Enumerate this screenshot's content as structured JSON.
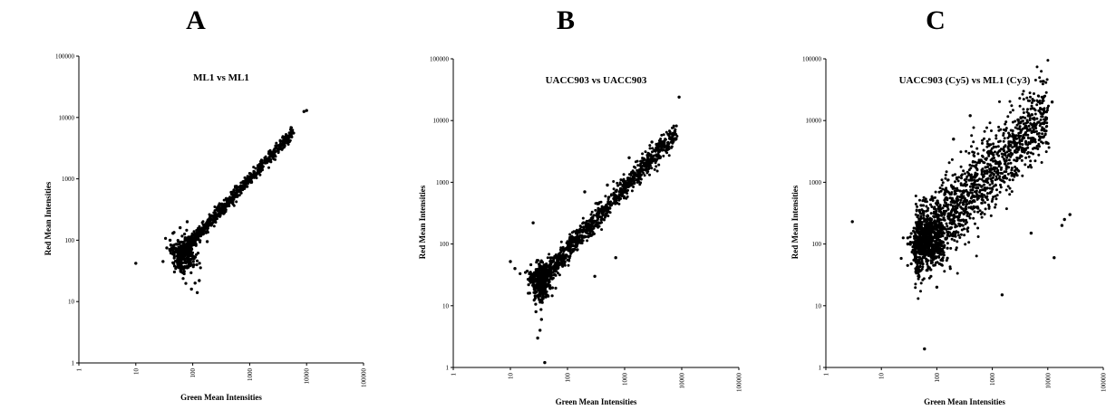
{
  "chart_data": [
    {
      "type": "scatter",
      "panel_label": "A",
      "title": "ML1 vs ML1",
      "xlabel": "Green Mean Intensities",
      "ylabel": "Red Mean Intensities",
      "xscale": "log",
      "yscale": "log",
      "xlim": [
        1,
        100000
      ],
      "ylim": [
        1,
        100000
      ],
      "x_ticks": [
        "1",
        "10",
        "100",
        "1000",
        "10000",
        "100000"
      ],
      "y_ticks": [
        "1",
        "10",
        "100",
        "1000",
        "10000",
        "100000"
      ],
      "grid": false,
      "description_of_cloud": {
        "body": {
          "x_range": [
            60,
            6000
          ],
          "slope": 1.0,
          "y_at_x100": 100,
          "spread_log10": 0.05,
          "count": 900
        },
        "low_blob": {
          "x_center": 70,
          "y_center": 60,
          "x_spread_log10": 0.12,
          "y_spread_log10": 0.15,
          "count": 250
        }
      },
      "points": [
        [
          10,
          42
        ],
        [
          180,
          95
        ],
        [
          10000,
          13000
        ],
        [
          9000,
          12500
        ],
        [
          40,
          100
        ],
        [
          35,
          75
        ],
        [
          45,
          130
        ],
        [
          110,
          20
        ],
        [
          95,
          16
        ],
        [
          120,
          14
        ],
        [
          80,
          200
        ],
        [
          60,
          160
        ],
        [
          30,
          45
        ],
        [
          130,
          22
        ]
      ]
    },
    {
      "type": "scatter",
      "panel_label": "B",
      "title": "UACC903 vs UACC903",
      "xlabel": "Green Mean Intensities",
      "ylabel": "Red Mean Intensities",
      "xscale": "log",
      "yscale": "log",
      "xlim": [
        1,
        100000
      ],
      "ylim": [
        1,
        100000
      ],
      "x_ticks": [
        "1",
        "10",
        "100",
        "1000",
        "10000",
        "100000"
      ],
      "y_ticks": [
        "1",
        "10",
        "100",
        "1000",
        "10000",
        "100000"
      ],
      "grid": false,
      "description_of_cloud": {
        "body": {
          "x_range": [
            30,
            8000
          ],
          "slope": 1.0,
          "y_at_x100": 80,
          "spread_log10": 0.09,
          "count": 1100
        },
        "low_blob": {
          "x_center": 33,
          "y_center": 25,
          "x_spread_log10": 0.1,
          "y_spread_log10": 0.15,
          "count": 300
        }
      },
      "points": [
        [
          10,
          52
        ],
        [
          12,
          40
        ],
        [
          30,
          3
        ],
        [
          33,
          4
        ],
        [
          40,
          1.2
        ],
        [
          60,
          60
        ],
        [
          300,
          30
        ],
        [
          200,
          700
        ],
        [
          500,
          900
        ],
        [
          3000,
          4500
        ],
        [
          9000,
          24000
        ],
        [
          25,
          220
        ],
        [
          28,
          8
        ],
        [
          35,
          6
        ],
        [
          1200,
          2500
        ],
        [
          700,
          60
        ]
      ]
    },
    {
      "type": "scatter",
      "panel_label": "C",
      "title": "UACC903 (Cy5) vs ML1 (Cy3)",
      "xlabel": "Green Mean Intensities",
      "ylabel": "Red Mean Intensities",
      "xscale": "log",
      "yscale": "log",
      "xlim": [
        1,
        100000
      ],
      "ylim": [
        1,
        100000
      ],
      "x_ticks": [
        "1",
        "10",
        "100",
        "1000",
        "10000",
        "100000"
      ],
      "y_ticks": [
        "1",
        "10",
        "100",
        "1000",
        "10000",
        "100000"
      ],
      "grid": false,
      "description_of_cloud": {
        "body": {
          "x_range": [
            40,
            10000
          ],
          "slope": 0.9,
          "y_at_x100": 200,
          "spread_log10": 0.32,
          "count": 1500
        },
        "low_blob": {
          "x_center": 70,
          "y_center": 100,
          "x_spread_log10": 0.15,
          "y_spread_log10": 0.2,
          "count": 400
        }
      },
      "points": [
        [
          3,
          230
        ],
        [
          60,
          2
        ],
        [
          20000,
          250
        ],
        [
          25000,
          300
        ],
        [
          12000,
          20000
        ],
        [
          13000,
          60
        ],
        [
          30,
          100
        ],
        [
          400,
          12000
        ],
        [
          200,
          5000
        ],
        [
          1500,
          15
        ],
        [
          5000,
          150
        ],
        [
          18000,
          200
        ],
        [
          100,
          20
        ],
        [
          8000,
          9000
        ]
      ]
    }
  ]
}
